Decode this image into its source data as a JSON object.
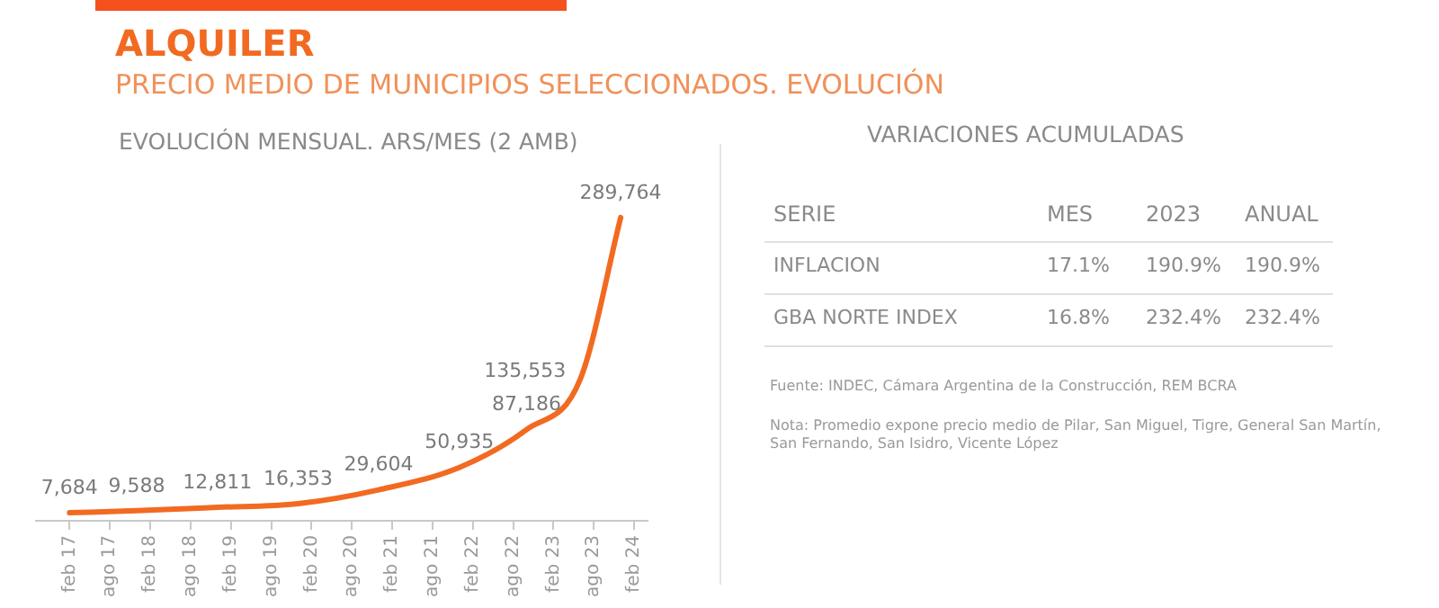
{
  "chart_data": {
    "type": "line",
    "title": "ALQUILER",
    "subtitle": "PRECIO MEDIO DE MUNICIPIOS SELECCIONADOS. EVOLUCIÓN",
    "x": [
      "2017-02",
      "2017-12",
      "2018-12",
      "2019-12",
      "2020-12",
      "2021-12",
      "2022-10",
      "2023-06",
      "2023-12"
    ],
    "series": [
      {
        "color": "#f26a21",
        "values": [
          7684,
          9588,
          12811,
          16353,
          29604,
          50935,
          87186,
          135553,
          289764
        ],
        "value_labels": [
          "7,684",
          "9,588",
          "12,811",
          "16,353",
          "29,604",
          "50,935",
          "87,186",
          "135,553",
          "289,764"
        ]
      }
    ],
    "marker": "none",
    "grid": false,
    "legend": false,
    "tick_labels": "x",
    "xlim": [
      "2016-09",
      "2024-04"
    ],
    "xticks": [
      {
        "value": "2017-02",
        "label": "feb 17"
      },
      {
        "value": "2017-08",
        "label": "ago 17"
      },
      {
        "value": "2018-02",
        "label": "feb 18"
      },
      {
        "value": "2018-08",
        "label": "ago 18"
      },
      {
        "value": "2019-02",
        "label": "feb 19"
      },
      {
        "value": "2019-08",
        "label": "ago 19"
      },
      {
        "value": "2020-02",
        "label": "feb 20"
      },
      {
        "value": "2020-08",
        "label": "ago 20"
      },
      {
        "value": "2021-02",
        "label": "feb 21"
      },
      {
        "value": "2021-08",
        "label": "ago 21"
      },
      {
        "value": "2022-02",
        "label": "feb 22"
      },
      {
        "value": "2022-08",
        "label": "ago 22"
      },
      {
        "value": "2023-02",
        "label": "feb 23"
      },
      {
        "value": "2023-08",
        "label": "ago 23"
      },
      {
        "value": "2024-02",
        "label": "feb 24"
      }
    ],
    "annotations": [
      "EVOLUCIÓN MENSUAL. ARS/MES (2 AMB)",
      "VARIACIONES ACUMULADAS",
      "SERIE",
      "MES",
      "2023",
      "ANUAL",
      "INFLACION",
      "17.1%",
      "190.9%",
      "190.9%",
      "GBA NORTE INDEX",
      "16.8%",
      "232.4%",
      "232.4%",
      "Fuente: INDEC, Cámara Argentina de la Construcción, REM BCRA",
      "Nota: Promedio expone precio medio de Pilar, San Miguel, Tigre, General San Martín, San Fernando, San Isidro, Vicente López"
    ]
  }
}
